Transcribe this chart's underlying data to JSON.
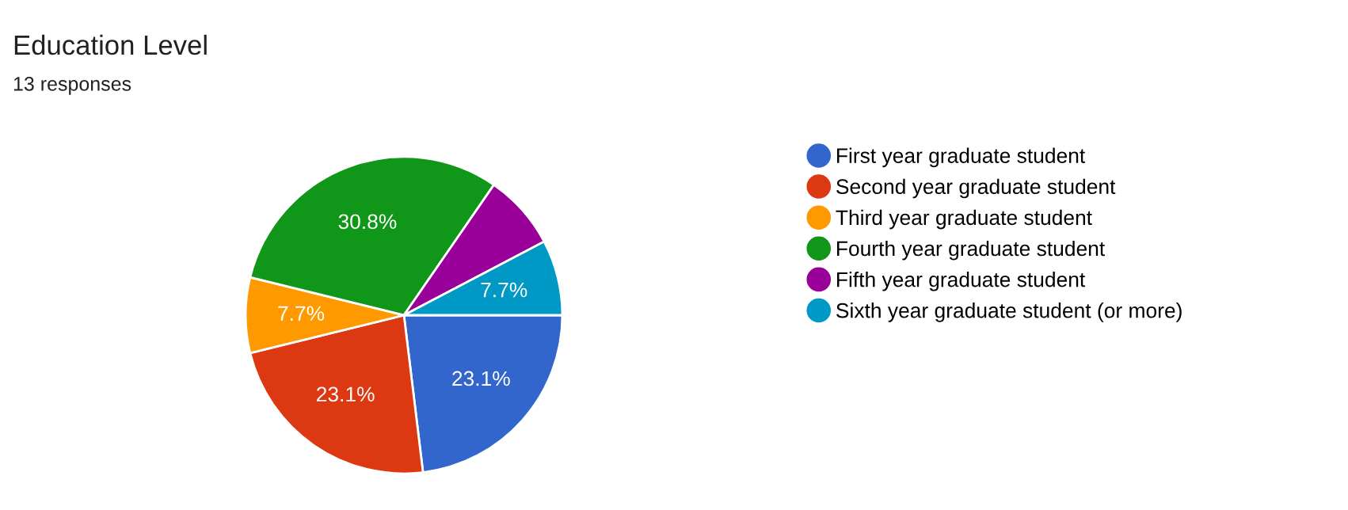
{
  "chart_data": {
    "type": "pie",
    "title": "Education Level",
    "subtitle": "13 responses",
    "categories": [
      "First year graduate student",
      "Second year graduate student",
      "Third year graduate student",
      "Fourth year graduate student",
      "Fifth year graduate student",
      "Sixth year graduate student (or more)"
    ],
    "values": [
      23.1,
      23.1,
      7.7,
      30.8,
      7.7,
      7.7
    ],
    "value_labels": [
      "23.1%",
      "23.1%",
      "7.7%",
      "30.8%",
      null,
      "7.7%"
    ],
    "colors": [
      "#3366cc",
      "#dc3912",
      "#ff9900",
      "#109618",
      "#990099",
      "#0099c6"
    ],
    "legend": "right"
  }
}
